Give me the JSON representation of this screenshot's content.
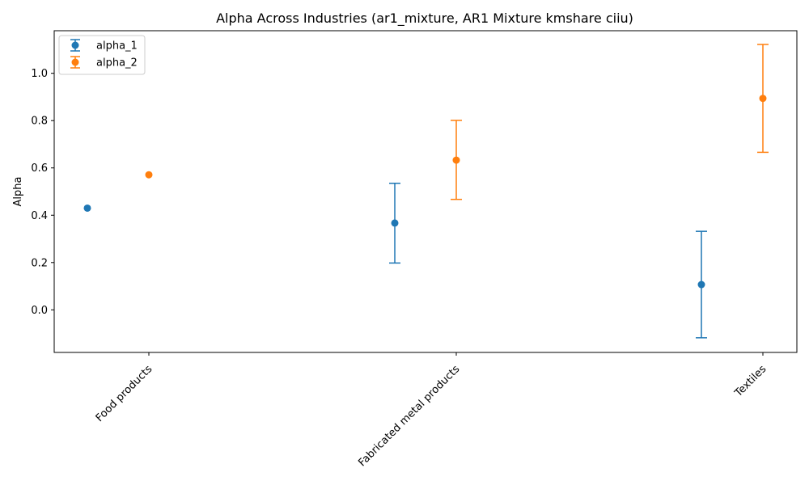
{
  "chart_data": {
    "type": "scatter",
    "title": "Alpha Across Industries (ar1_mixture, AR1 Mixture kmshare ciiu)",
    "xlabel": "",
    "ylabel": "Alpha",
    "categories": [
      "Food products",
      "Fabricated metal products",
      "Textiles"
    ],
    "yticks": [
      "0.0",
      "0.2",
      "0.4",
      "0.6",
      "0.8",
      "1.0"
    ],
    "ylim": [
      -0.18,
      1.18
    ],
    "grid": false,
    "legend_position": "top-left",
    "series": [
      {
        "name": "alpha_1",
        "color": "#1f77b4",
        "values": [
          0.43,
          0.367,
          0.107
        ],
        "lower": [
          0.43,
          0.198,
          -0.118
        ],
        "upper": [
          0.43,
          0.535,
          0.332
        ]
      },
      {
        "name": "alpha_2",
        "color": "#ff7f0e",
        "values": [
          0.571,
          0.633,
          0.894
        ],
        "lower": [
          0.571,
          0.467,
          0.666
        ],
        "upper": [
          0.571,
          0.801,
          1.122
        ]
      }
    ]
  }
}
